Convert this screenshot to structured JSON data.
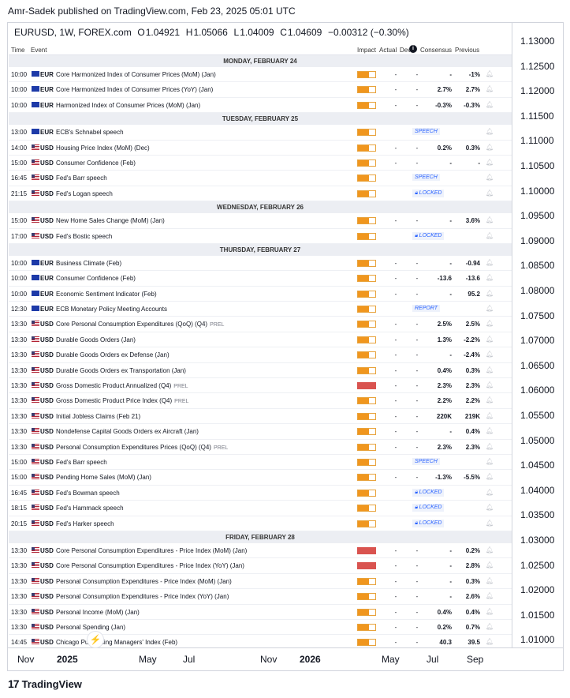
{
  "header": {
    "publisher": "Amr-Sadek published on TradingView.com, Feb 23, 2025 05:01 UTC"
  },
  "symbol": {
    "name": "EURUSD, 1W, FOREX.com",
    "open_label": "O",
    "open": "1.04921",
    "high_label": "H",
    "high": "1.05066",
    "low_label": "L",
    "low": "1.04009",
    "close_label": "C",
    "close": "1.04609",
    "change": "−0.00312 (−0.30%)"
  },
  "table_headers": {
    "time": "Time",
    "event": "Event",
    "impact": "Impact",
    "actual": "Actual",
    "dev": "Dev",
    "consensus": "Consensus",
    "previous": "Previous"
  },
  "days": [
    {
      "label": "MONDAY, FEBRUARY 24",
      "rows": [
        {
          "time": "10:00",
          "cur": "EUR",
          "event": "Core Harmonized Index of Consumer Prices (MoM) (Jan)",
          "prel": "",
          "impact": 0.65,
          "actual": "-",
          "dev": "-",
          "consensus": "-",
          "previous": "-1%",
          "tag": ""
        },
        {
          "time": "10:00",
          "cur": "EUR",
          "event": "Core Harmonized Index of Consumer Prices (YoY) (Jan)",
          "prel": "",
          "impact": 0.65,
          "actual": "-",
          "dev": "-",
          "consensus": "2.7%",
          "previous": "2.7%",
          "tag": ""
        },
        {
          "time": "10:00",
          "cur": "EUR",
          "event": "Harmonized Index of Consumer Prices (MoM) (Jan)",
          "prel": "",
          "impact": 0.65,
          "actual": "-",
          "dev": "-",
          "consensus": "-0.3%",
          "previous": "-0.3%",
          "tag": ""
        }
      ]
    },
    {
      "label": "TUESDAY, FEBRUARY 25",
      "rows": [
        {
          "time": "13:00",
          "cur": "EUR",
          "event": "ECB's Schnabel speech",
          "prel": "",
          "impact": 0.65,
          "actual": "",
          "dev": "",
          "consensus": "",
          "previous": "",
          "tag": "SPEECH"
        },
        {
          "time": "14:00",
          "cur": "USD",
          "event": "Housing Price Index (MoM) (Dec)",
          "prel": "",
          "impact": 0.65,
          "actual": "-",
          "dev": "-",
          "consensus": "0.2%",
          "previous": "0.3%",
          "tag": ""
        },
        {
          "time": "15:00",
          "cur": "USD",
          "event": "Consumer Confidence (Feb)",
          "prel": "",
          "impact": 0.65,
          "actual": "-",
          "dev": "-",
          "consensus": "-",
          "previous": "-",
          "tag": ""
        },
        {
          "time": "16:45",
          "cur": "USD",
          "event": "Fed's Barr speech",
          "prel": "",
          "impact": 0.65,
          "actual": "",
          "dev": "",
          "consensus": "",
          "previous": "",
          "tag": "SPEECH"
        },
        {
          "time": "21:15",
          "cur": "USD",
          "event": "Fed's Logan speech",
          "prel": "",
          "impact": 0.65,
          "actual": "",
          "dev": "",
          "consensus": "",
          "previous": "",
          "tag": "LOCKED"
        }
      ]
    },
    {
      "label": "WEDNESDAY, FEBRUARY 26",
      "rows": [
        {
          "time": "15:00",
          "cur": "USD",
          "event": "New Home Sales Change (MoM) (Jan)",
          "prel": "",
          "impact": 0.65,
          "actual": "-",
          "dev": "-",
          "consensus": "-",
          "previous": "3.6%",
          "tag": ""
        },
        {
          "time": "17:00",
          "cur": "USD",
          "event": "Fed's Bostic speech",
          "prel": "",
          "impact": 0.65,
          "actual": "",
          "dev": "",
          "consensus": "",
          "previous": "",
          "tag": "LOCKED"
        }
      ]
    },
    {
      "label": "THURSDAY, FEBRUARY 27",
      "rows": [
        {
          "time": "10:00",
          "cur": "EUR",
          "event": "Business Climate (Feb)",
          "prel": "",
          "impact": 0.65,
          "actual": "-",
          "dev": "-",
          "consensus": "-",
          "previous": "-0.94",
          "tag": ""
        },
        {
          "time": "10:00",
          "cur": "EUR",
          "event": "Consumer Confidence (Feb)",
          "prel": "",
          "impact": 0.65,
          "actual": "-",
          "dev": "-",
          "consensus": "-13.6",
          "previous": "-13.6",
          "tag": ""
        },
        {
          "time": "10:00",
          "cur": "EUR",
          "event": "Economic Sentiment Indicator (Feb)",
          "prel": "",
          "impact": 0.65,
          "actual": "-",
          "dev": "-",
          "consensus": "-",
          "previous": "95.2",
          "tag": ""
        },
        {
          "time": "12:30",
          "cur": "EUR",
          "event": "ECB Monetary Policy Meeting Accounts",
          "prel": "",
          "impact": 0.65,
          "actual": "",
          "dev": "",
          "consensus": "",
          "previous": "",
          "tag": "REPORT"
        },
        {
          "time": "13:30",
          "cur": "USD",
          "event": "Core Personal Consumption Expenditures (QoQ) (Q4)",
          "prel": "PREL",
          "impact": 0.65,
          "actual": "-",
          "dev": "-",
          "consensus": "2.5%",
          "previous": "2.5%",
          "tag": ""
        },
        {
          "time": "13:30",
          "cur": "USD",
          "event": "Durable Goods Orders (Jan)",
          "prel": "",
          "impact": 0.65,
          "actual": "-",
          "dev": "-",
          "consensus": "1.3%",
          "previous": "-2.2%",
          "tag": ""
        },
        {
          "time": "13:30",
          "cur": "USD",
          "event": "Durable Goods Orders ex Defense (Jan)",
          "prel": "",
          "impact": 0.65,
          "actual": "-",
          "dev": "-",
          "consensus": "-",
          "previous": "-2.4%",
          "tag": ""
        },
        {
          "time": "13:30",
          "cur": "USD",
          "event": "Durable Goods Orders ex Transportation (Jan)",
          "prel": "",
          "impact": 0.65,
          "actual": "-",
          "dev": "-",
          "consensus": "0.4%",
          "previous": "0.3%",
          "tag": ""
        },
        {
          "time": "13:30",
          "cur": "USD",
          "event": "Gross Domestic Product Annualized (Q4)",
          "prel": "PREL",
          "impact": 1,
          "actual": "-",
          "dev": "-",
          "consensus": "2.3%",
          "previous": "2.3%",
          "tag": ""
        },
        {
          "time": "13:30",
          "cur": "USD",
          "event": "Gross Domestic Product Price Index (Q4)",
          "prel": "PREL",
          "impact": 0.65,
          "actual": "-",
          "dev": "-",
          "consensus": "2.2%",
          "previous": "2.2%",
          "tag": ""
        },
        {
          "time": "13:30",
          "cur": "USD",
          "event": "Initial Jobless Claims (Feb 21)",
          "prel": "",
          "impact": 0.65,
          "actual": "-",
          "dev": "-",
          "consensus": "220K",
          "previous": "219K",
          "tag": ""
        },
        {
          "time": "13:30",
          "cur": "USD",
          "event": "Nondefense Capital Goods Orders ex Aircraft (Jan)",
          "prel": "",
          "impact": 0.65,
          "actual": "-",
          "dev": "-",
          "consensus": "-",
          "previous": "0.4%",
          "tag": ""
        },
        {
          "time": "13:30",
          "cur": "USD",
          "event": "Personal Consumption Expenditures Prices (QoQ) (Q4)",
          "prel": "PREL",
          "impact": 0.65,
          "actual": "-",
          "dev": "-",
          "consensus": "2.3%",
          "previous": "2.3%",
          "tag": ""
        },
        {
          "time": "15:00",
          "cur": "USD",
          "event": "Fed's Barr speech",
          "prel": "",
          "impact": 0.65,
          "actual": "",
          "dev": "",
          "consensus": "",
          "previous": "",
          "tag": "SPEECH"
        },
        {
          "time": "15:00",
          "cur": "USD",
          "event": "Pending Home Sales (MoM) (Jan)",
          "prel": "",
          "impact": 0.65,
          "actual": "-",
          "dev": "-",
          "consensus": "-1.3%",
          "previous": "-5.5%",
          "tag": ""
        },
        {
          "time": "16:45",
          "cur": "USD",
          "event": "Fed's Bowman speech",
          "prel": "",
          "impact": 0.65,
          "actual": "",
          "dev": "",
          "consensus": "",
          "previous": "",
          "tag": "LOCKED"
        },
        {
          "time": "18:15",
          "cur": "USD",
          "event": "Fed's Hammack speech",
          "prel": "",
          "impact": 0.65,
          "actual": "",
          "dev": "",
          "consensus": "",
          "previous": "",
          "tag": "LOCKED"
        },
        {
          "time": "20:15",
          "cur": "USD",
          "event": "Fed's Harker speech",
          "prel": "",
          "impact": 0.65,
          "actual": "",
          "dev": "",
          "consensus": "",
          "previous": "",
          "tag": "LOCKED"
        }
      ]
    },
    {
      "label": "FRIDAY, FEBRUARY 28",
      "rows": [
        {
          "time": "13:30",
          "cur": "USD",
          "event": "Core Personal Consumption Expenditures - Price Index (MoM) (Jan)",
          "prel": "",
          "impact": 1,
          "actual": "-",
          "dev": "-",
          "consensus": "-",
          "previous": "0.2%",
          "tag": ""
        },
        {
          "time": "13:30",
          "cur": "USD",
          "event": "Core Personal Consumption Expenditures - Price Index (YoY) (Jan)",
          "prel": "",
          "impact": 1,
          "actual": "-",
          "dev": "-",
          "consensus": "-",
          "previous": "2.8%",
          "tag": ""
        },
        {
          "time": "13:30",
          "cur": "USD",
          "event": "Personal Consumption Expenditures - Price Index (MoM) (Jan)",
          "prel": "",
          "impact": 0.65,
          "actual": "-",
          "dev": "-",
          "consensus": "-",
          "previous": "0.3%",
          "tag": ""
        },
        {
          "time": "13:30",
          "cur": "USD",
          "event": "Personal Consumption Expenditures - Price Index (YoY) (Jan)",
          "prel": "",
          "impact": 0.65,
          "actual": "-",
          "dev": "-",
          "consensus": "-",
          "previous": "2.6%",
          "tag": ""
        },
        {
          "time": "13:30",
          "cur": "USD",
          "event": "Personal Income (MoM) (Jan)",
          "prel": "",
          "impact": 0.65,
          "actual": "-",
          "dev": "-",
          "consensus": "0.4%",
          "previous": "0.4%",
          "tag": ""
        },
        {
          "time": "13:30",
          "cur": "USD",
          "event": "Personal Spending (Jan)",
          "prel": "",
          "impact": 0.65,
          "actual": "-",
          "dev": "-",
          "consensus": "0.2%",
          "previous": "0.7%",
          "tag": ""
        },
        {
          "time": "14:45",
          "cur": "USD",
          "event": "Chicago Purchasing Managers' Index (Feb)",
          "prel": "",
          "impact": 0.65,
          "actual": "-",
          "dev": "-",
          "consensus": "40.3",
          "previous": "39.5",
          "tag": ""
        }
      ]
    }
  ],
  "price_axis": [
    "1.13000",
    "1.12500",
    "1.12000",
    "1.11500",
    "1.11000",
    "1.10500",
    "1.10000",
    "1.09500",
    "1.09000",
    "1.08500",
    "1.08000",
    "1.07500",
    "1.07000",
    "1.06500",
    "1.06000",
    "1.05500",
    "1.05000",
    "1.04500",
    "1.04000",
    "1.03500",
    "1.03000",
    "1.02500",
    "1.02000",
    "1.01500",
    "1.01000"
  ],
  "time_axis": [
    {
      "label": "Nov",
      "bold": false
    },
    {
      "label": "2025",
      "bold": true
    },
    {
      "label": "May",
      "bold": false
    },
    {
      "label": "Jul",
      "bold": false
    },
    {
      "label": "Nov",
      "bold": false
    },
    {
      "label": "2026",
      "bold": true
    },
    {
      "label": "May",
      "bold": false
    },
    {
      "label": "Jul",
      "bold": false
    },
    {
      "label": "Sep",
      "bold": false
    }
  ],
  "footer": {
    "brand": "TradingView",
    "logo_text": "17"
  },
  "colors": {
    "impact_medium": "#f0961e",
    "impact_high": "#d9534f",
    "tag_blue": "#2962ff"
  }
}
